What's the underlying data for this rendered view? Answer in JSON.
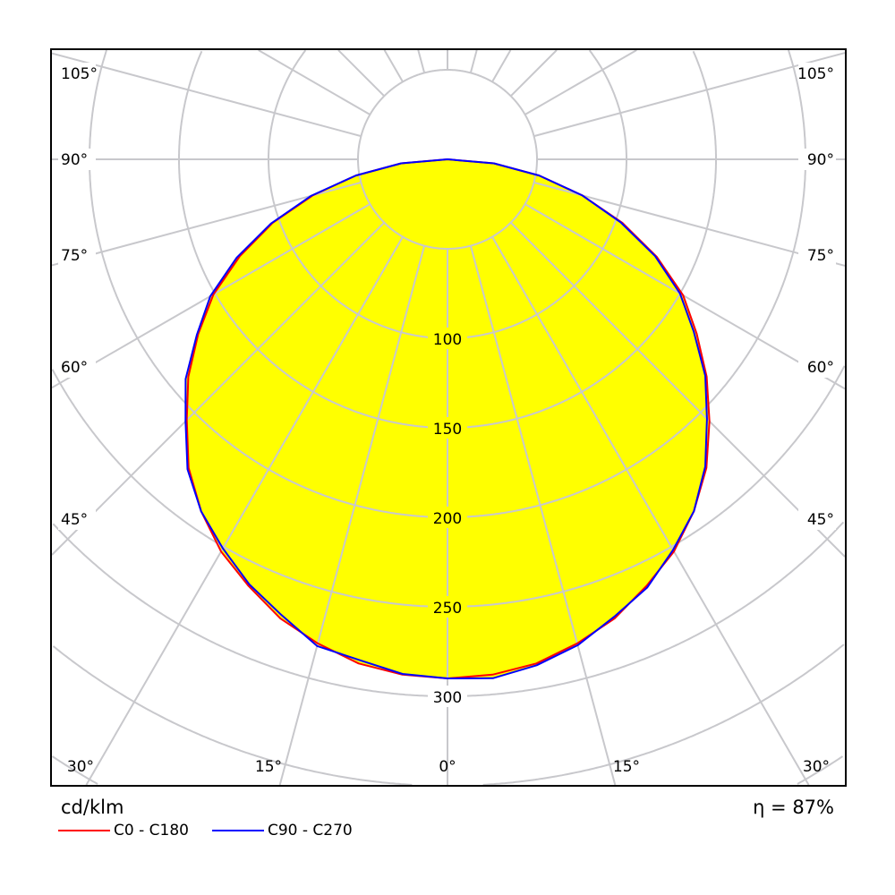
{
  "chart_data": {
    "type": "polar",
    "unit_label": "cd/klm",
    "efficiency_label": "η = 87%",
    "radial_ticks": [
      100,
      150,
      200,
      250,
      300
    ],
    "rlim": [
      0,
      450
    ],
    "angle_step_deg": 15,
    "angle_labels": {
      "left": [
        "105°",
        "90°",
        "75°",
        "60°",
        "45°"
      ],
      "right": [
        "105°",
        "90°",
        "75°",
        "60°",
        "45°"
      ],
      "bottom": [
        "30°",
        "15°",
        "0°",
        "15°",
        "30°"
      ]
    },
    "angles_deg": [
      0,
      5,
      10,
      15,
      20,
      25,
      30,
      35,
      40,
      45,
      50,
      55,
      60,
      65,
      70,
      75,
      80,
      85,
      90
    ],
    "series": [
      {
        "name": "C0 - C180",
        "color": "#ff0000",
        "right_values": [
          290,
          289,
          286,
          280,
          273,
          263,
          253,
          240,
          225,
          207,
          189,
          170,
          152,
          129,
          104,
          78,
          52,
          26,
          0
        ],
        "left_values": [
          290,
          289,
          286,
          280,
          273,
          263,
          253,
          240,
          225,
          206,
          189,
          170,
          151,
          128,
          104,
          78,
          52,
          26,
          0
        ]
      },
      {
        "name": "C90 - C270",
        "color": "#0000ff",
        "right_values": [
          290,
          291,
          287,
          281,
          272,
          264,
          252,
          240,
          224,
          205,
          188,
          168,
          150,
          128,
          103,
          78,
          52,
          26,
          0
        ],
        "left_values": [
          290,
          288.6,
          284,
          281.5,
          271,
          262,
          251,
          240,
          226,
          207,
          191,
          171,
          153,
          130,
          105,
          79,
          52,
          26,
          0
        ]
      }
    ],
    "fill_color": "#ffff00",
    "grid": true
  }
}
